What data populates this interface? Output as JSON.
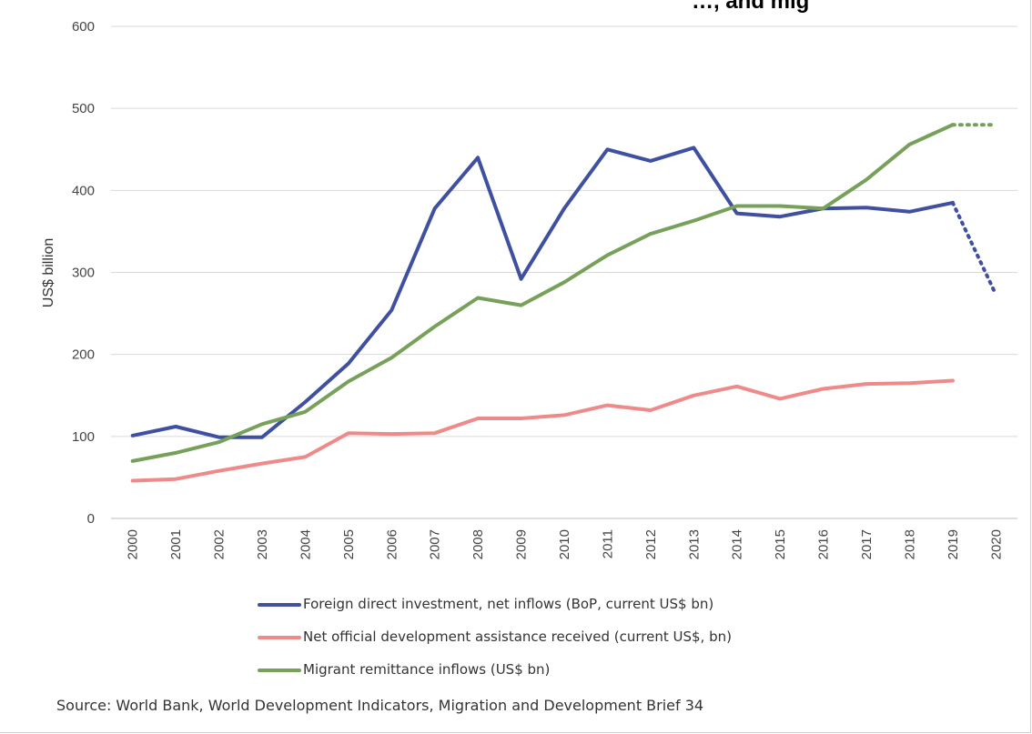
{
  "title_fragment": "…, and mig",
  "source": "Source: World Bank, World Development Indicators, Migration and Development Brief 34",
  "chart_data": {
    "type": "line",
    "ylabel": "US$ billion",
    "xlabel": "",
    "ylim": [
      0,
      600
    ],
    "yticks": [
      0,
      100,
      200,
      300,
      400,
      500,
      600
    ],
    "grid": true,
    "legend_position": "bottom",
    "categories": [
      "2000",
      "2001",
      "2002",
      "2003",
      "2004",
      "2005",
      "2006",
      "2007",
      "2008",
      "2009",
      "2010",
      "2011",
      "2012",
      "2013",
      "2014",
      "2015",
      "2016",
      "2017",
      "2018",
      "2019",
      "2020"
    ],
    "series": [
      {
        "name": "Foreign direct investment, net inflows (BoP, current US$ bn)",
        "color": "#4050a0",
        "values": [
          101,
          112,
          99,
          99,
          142,
          189,
          254,
          378,
          440,
          292,
          378,
          450,
          436,
          452,
          372,
          368,
          378,
          379,
          374,
          385,
          null
        ],
        "projection": [
          385,
          273
        ]
      },
      {
        "name": "Net official development assistance received (current US$, bn)",
        "color": "#ef8a8a",
        "values": [
          46,
          48,
          58,
          67,
          75,
          104,
          103,
          104,
          122,
          122,
          126,
          138,
          132,
          150,
          161,
          146,
          158,
          164,
          165,
          168,
          null
        ],
        "projection": null
      },
      {
        "name": "Migrant remittance inflows (US$ bn)",
        "color": "#77a05a",
        "values": [
          70,
          80,
          93,
          115,
          130,
          167,
          196,
          234,
          269,
          260,
          288,
          321,
          347,
          363,
          381,
          381,
          378,
          413,
          456,
          480,
          null
        ],
        "projection": [
          480,
          480
        ]
      }
    ]
  }
}
